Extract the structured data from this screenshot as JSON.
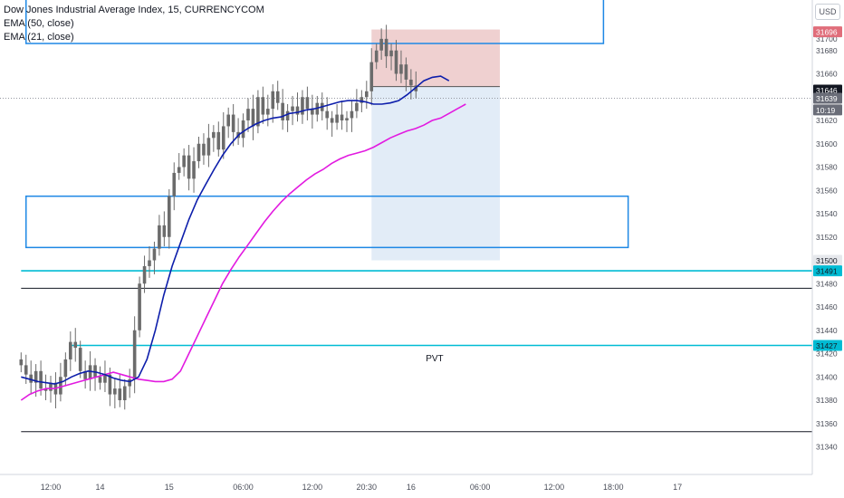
{
  "header": {
    "title": "Dow Jones Industrial Average Index, 15, CURRENCYCOM",
    "indicators": [
      "EMA (50, close)",
      "EMA (21, close)"
    ],
    "currency_button": "USD"
  },
  "colors": {
    "candle": "#6b6b6b",
    "ema50": "#0d1eab",
    "ema21": "#e21ae0",
    "zone_border": "#1e88e5",
    "level_cyan": "#00bcd4",
    "level_black": "#131722",
    "stop_fill": "#e8bcbc",
    "target_fill": "#dbe7f5",
    "current_price": "#4a4e59",
    "pink_label": "#e06d7a"
  },
  "chart_data": {
    "type": "candlestick",
    "ylim": [
      31320,
      31760
    ],
    "y_ticks": [
      31340,
      31360,
      31380,
      31400,
      31420,
      31440,
      31460,
      31480,
      31500,
      31520,
      31540,
      31560,
      31580,
      31600,
      31620,
      31640,
      31660,
      31680
    ],
    "x_ticks": [
      {
        "label": "12:00",
        "bar": 0
      },
      {
        "label": "14",
        "bar": 10
      },
      {
        "label": "15",
        "bar": 24
      },
      {
        "label": "06:00",
        "bar": 39
      },
      {
        "label": "12:00",
        "bar": 53
      },
      {
        "label": "20:30",
        "bar": 64
      },
      {
        "label": "16",
        "bar": 73
      },
      {
        "label": "06:00",
        "bar": 87
      },
      {
        "label": "12:00",
        "bar": 102
      },
      {
        "label": "18:00",
        "bar": 114
      },
      {
        "label": "17",
        "bar": 127
      }
    ],
    "bar_start": -6,
    "closes": [
      31410,
      31402,
      31395,
      31405,
      31390,
      31388,
      31395,
      31385,
      31400,
      31415,
      31430,
      31425,
      31405,
      31398,
      31410,
      31400,
      31395,
      31402,
      31385,
      31390,
      31380,
      31392,
      31398,
      31440,
      31480,
      31495,
      31500,
      31510,
      31530,
      31520,
      31555,
      31575,
      31580,
      31590,
      31570,
      31585,
      31600,
      31590,
      31605,
      31610,
      31595,
      31615,
      31625,
      31610,
      31605,
      31620,
      31630,
      31615,
      31640,
      31625,
      31630,
      31645,
      31635,
      31620,
      31628,
      31632,
      31625,
      31640,
      31630,
      31625,
      31635,
      31628,
      31622,
      31618,
      31625,
      31620,
      31622,
      31628,
      31635,
      31640,
      31645,
      31670,
      31680,
      31690,
      31675,
      31680,
      31660,
      31668,
      31655,
      31650,
      31645
    ],
    "ema21": [
      31380,
      31385,
      31388,
      31390,
      31390,
      31392,
      31394,
      31396,
      31398,
      31400,
      31402,
      31404,
      31402,
      31400,
      31398,
      31397,
      31396,
      31396,
      31398,
      31405,
      31420,
      31435,
      31450,
      31465,
      31480,
      31492,
      31503,
      31513,
      31523,
      31533,
      31542,
      31550,
      31557,
      31563,
      31569,
      31574,
      31578,
      31583,
      31587,
      31590,
      31592,
      31594,
      31597,
      31601,
      31605,
      31608,
      31611,
      31613,
      31616,
      31620,
      31622,
      31626,
      31630,
      31634
    ],
    "ema50": [
      31400,
      31398,
      31396,
      31395,
      31394,
      31396,
      31400,
      31403,
      31405,
      31404,
      31402,
      31399,
      31397,
      31396,
      31400,
      31415,
      31440,
      31470,
      31495,
      31515,
      31535,
      31552,
      31565,
      31578,
      31590,
      31600,
      31608,
      31613,
      31617,
      31620,
      31622,
      31623,
      31626,
      31627,
      31629,
      31630,
      31632,
      31634,
      31636,
      31637,
      31637,
      31636,
      31634,
      31634,
      31635,
      31637,
      31642,
      31648,
      31654,
      31657,
      31658,
      31654
    ],
    "ema_start_bar": -6,
    "zones": [
      {
        "top": 31738,
        "bottom": 31686,
        "start_bar": -5,
        "end_bar": 112
      },
      {
        "top": 31555,
        "bottom": 31511,
        "start_bar": -5,
        "end_bar": 117
      }
    ],
    "levels": [
      {
        "price": 31491,
        "color": "cyan",
        "start_bar": -6
      },
      {
        "price": 31427,
        "color": "cyan",
        "start_bar": 4
      },
      {
        "price": 31476,
        "color": "black",
        "start_bar": -6
      },
      {
        "price": 31353,
        "color": "black",
        "start_bar": -6
      }
    ],
    "pvt_label": {
      "text": "PVT",
      "price": 31421,
      "bar": 76
    },
    "position": {
      "start_bar": 65,
      "end_bar": 91,
      "stop": 31698,
      "entry": 31649,
      "target": 31500
    },
    "current_price": 31639,
    "axis_tags": [
      {
        "price": 31696,
        "label": "31696",
        "kind": "pink"
      },
      {
        "price": 31646,
        "label": "31646",
        "kind": "dark"
      },
      {
        "price": 31639,
        "label": "31639",
        "kind": "gray"
      },
      {
        "price": 31629,
        "label": "10:19",
        "kind": "gray"
      },
      {
        "price": 31500,
        "label": "31500",
        "kind": "light"
      },
      {
        "price": 31491,
        "label": "31491",
        "kind": "cyan"
      },
      {
        "price": 31427,
        "label": "31427",
        "kind": "cyan"
      }
    ],
    "partial_top_label": "31700"
  }
}
